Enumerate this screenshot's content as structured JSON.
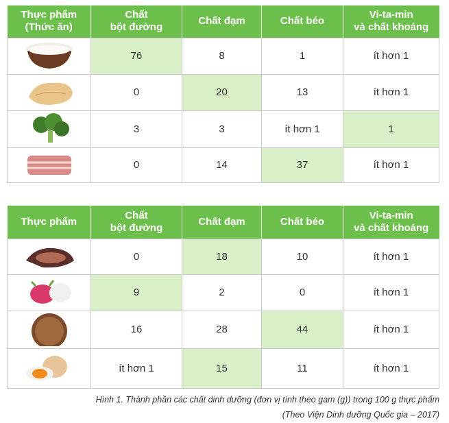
{
  "tables": [
    {
      "header": [
        [
          "Thực phẩm",
          "(Thức ăn)"
        ],
        [
          "Chất",
          "bột đường"
        ],
        [
          "Chất đạm"
        ],
        [
          "Chất béo"
        ],
        [
          "Vi-ta-min",
          "và chất khoáng"
        ]
      ],
      "rows": [
        [
          76,
          8,
          1,
          "ít hơn 1"
        ],
        [
          0,
          20,
          13,
          "ít hơn 1"
        ],
        [
          3,
          3,
          "ít hơn 1",
          1
        ],
        [
          0,
          14,
          37,
          "ít hơn 1"
        ]
      ]
    },
    {
      "header": [
        [
          "Thực phẩm"
        ],
        [
          "Chất",
          "bột đường"
        ],
        [
          "Chất đạm"
        ],
        [
          "Chất béo"
        ],
        [
          "Vi-ta-min",
          "và chất khoáng"
        ]
      ],
      "rows": [
        [
          0,
          18,
          10,
          "ít hơn 1"
        ],
        [
          9,
          2,
          0,
          "ít hơn 1"
        ],
        [
          16,
          28,
          44,
          "ít hơn 1"
        ],
        [
          "ít hơn 1",
          15,
          11,
          "ít hơn 1"
        ]
      ]
    }
  ],
  "caption": [
    "Hình 1. Thành phần các chất dinh dưỡng (đơn vị tính theo gam (g)) trong 100 g thực phẩm",
    "(Theo Viện Dinh dưỡng Quốc gia – 2017)"
  ]
}
